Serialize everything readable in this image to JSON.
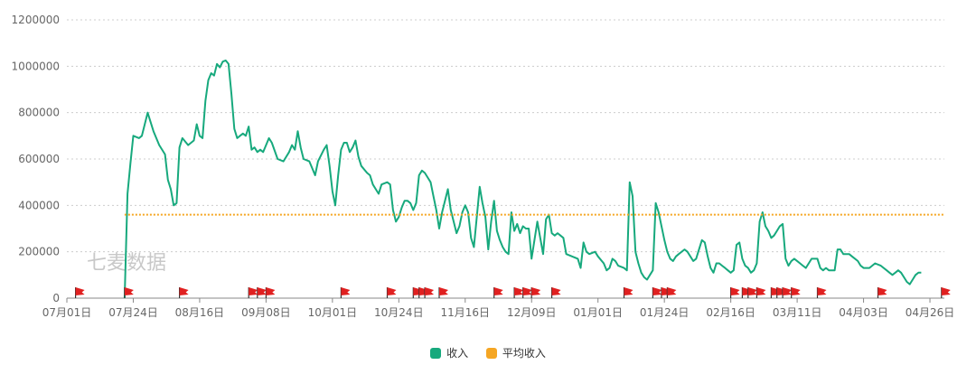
{
  "watermark": "七麦数据",
  "colors": {
    "income": "#17a97d",
    "average": "#f5a623",
    "flag": "#e02020",
    "axis": "#888888"
  },
  "legend": {
    "income": "收入",
    "average": "平均收入"
  },
  "chart_data": {
    "type": "line",
    "title": "",
    "ylim": [
      0,
      1200000
    ],
    "yticks": [
      0,
      200000,
      400000,
      600000,
      800000,
      1000000,
      1200000
    ],
    "ytick_labels": [
      "0",
      "200000",
      "400000",
      "600000",
      "800000",
      "1000000",
      "1200000"
    ],
    "xtick_labels": [
      "07月01日",
      "07月24日",
      "08月16日",
      "09月08日",
      "10月01日",
      "10月24日",
      "11月16日",
      "12月09日",
      "01月01日",
      "01月24日",
      "02月16日",
      "03月11日",
      "04月03日",
      "04月26日"
    ],
    "xtick_day_index": [
      0,
      23,
      46,
      69,
      92,
      115,
      138,
      161,
      184,
      207,
      230,
      253,
      276,
      299
    ],
    "day_count": 304,
    "grid": true,
    "legend_position": "bottom-center",
    "series": [
      {
        "name": "收入",
        "color": "#17a97d",
        "points": [
          [
            20,
            0
          ],
          [
            21,
            450000
          ],
          [
            22,
            580000
          ],
          [
            23,
            700000
          ],
          [
            25,
            690000
          ],
          [
            26,
            700000
          ],
          [
            28,
            800000
          ],
          [
            30,
            720000
          ],
          [
            32,
            660000
          ],
          [
            34,
            620000
          ],
          [
            35,
            510000
          ],
          [
            36,
            470000
          ],
          [
            37,
            400000
          ],
          [
            38,
            410000
          ],
          [
            39,
            650000
          ],
          [
            40,
            690000
          ],
          [
            42,
            660000
          ],
          [
            44,
            680000
          ],
          [
            45,
            750000
          ],
          [
            46,
            700000
          ],
          [
            47,
            690000
          ],
          [
            48,
            850000
          ],
          [
            49,
            940000
          ],
          [
            50,
            970000
          ],
          [
            51,
            960000
          ],
          [
            52,
            1010000
          ],
          [
            53,
            995000
          ],
          [
            54,
            1020000
          ],
          [
            55,
            1025000
          ],
          [
            56,
            1010000
          ],
          [
            57,
            880000
          ],
          [
            58,
            730000
          ],
          [
            59,
            690000
          ],
          [
            60,
            700000
          ],
          [
            61,
            710000
          ],
          [
            62,
            700000
          ],
          [
            63,
            740000
          ],
          [
            64,
            640000
          ],
          [
            65,
            650000
          ],
          [
            66,
            630000
          ],
          [
            67,
            640000
          ],
          [
            68,
            630000
          ],
          [
            69,
            660000
          ],
          [
            70,
            690000
          ],
          [
            71,
            670000
          ],
          [
            73,
            600000
          ],
          [
            75,
            590000
          ],
          [
            77,
            630000
          ],
          [
            78,
            660000
          ],
          [
            79,
            640000
          ],
          [
            80,
            720000
          ],
          [
            81,
            650000
          ],
          [
            82,
            600000
          ],
          [
            84,
            590000
          ],
          [
            85,
            560000
          ],
          [
            86,
            530000
          ],
          [
            87,
            590000
          ],
          [
            89,
            640000
          ],
          [
            90,
            660000
          ],
          [
            91,
            570000
          ],
          [
            92,
            460000
          ],
          [
            93,
            400000
          ],
          [
            94,
            530000
          ],
          [
            95,
            640000
          ],
          [
            96,
            670000
          ],
          [
            97,
            670000
          ],
          [
            98,
            630000
          ],
          [
            99,
            650000
          ],
          [
            100,
            680000
          ],
          [
            101,
            610000
          ],
          [
            102,
            570000
          ],
          [
            104,
            540000
          ],
          [
            105,
            530000
          ],
          [
            106,
            490000
          ],
          [
            107,
            470000
          ],
          [
            108,
            450000
          ],
          [
            109,
            490000
          ],
          [
            111,
            500000
          ],
          [
            112,
            490000
          ],
          [
            113,
            380000
          ],
          [
            114,
            330000
          ],
          [
            115,
            350000
          ],
          [
            116,
            390000
          ],
          [
            117,
            420000
          ],
          [
            118,
            420000
          ],
          [
            119,
            410000
          ],
          [
            120,
            380000
          ],
          [
            121,
            410000
          ],
          [
            122,
            530000
          ],
          [
            123,
            550000
          ],
          [
            124,
            540000
          ],
          [
            125,
            520000
          ],
          [
            126,
            500000
          ],
          [
            127,
            440000
          ],
          [
            128,
            380000
          ],
          [
            129,
            300000
          ],
          [
            130,
            370000
          ],
          [
            131,
            420000
          ],
          [
            132,
            470000
          ],
          [
            133,
            380000
          ],
          [
            134,
            330000
          ],
          [
            135,
            280000
          ],
          [
            136,
            310000
          ],
          [
            137,
            370000
          ],
          [
            138,
            400000
          ],
          [
            139,
            370000
          ],
          [
            140,
            260000
          ],
          [
            141,
            220000
          ],
          [
            142,
            350000
          ],
          [
            143,
            480000
          ],
          [
            144,
            410000
          ],
          [
            145,
            350000
          ],
          [
            146,
            210000
          ],
          [
            147,
            330000
          ],
          [
            148,
            420000
          ],
          [
            149,
            290000
          ],
          [
            150,
            250000
          ],
          [
            151,
            220000
          ],
          [
            152,
            200000
          ],
          [
            153,
            190000
          ],
          [
            154,
            370000
          ],
          [
            155,
            290000
          ],
          [
            156,
            320000
          ],
          [
            157,
            280000
          ],
          [
            158,
            310000
          ],
          [
            159,
            300000
          ],
          [
            160,
            300000
          ],
          [
            161,
            170000
          ],
          [
            162,
            250000
          ],
          [
            163,
            330000
          ],
          [
            164,
            260000
          ],
          [
            165,
            190000
          ],
          [
            166,
            340000
          ],
          [
            167,
            360000
          ],
          [
            168,
            280000
          ],
          [
            169,
            270000
          ],
          [
            170,
            280000
          ],
          [
            171,
            270000
          ],
          [
            172,
            260000
          ],
          [
            173,
            190000
          ],
          [
            175,
            180000
          ],
          [
            177,
            170000
          ],
          [
            178,
            130000
          ],
          [
            179,
            240000
          ],
          [
            180,
            200000
          ],
          [
            181,
            190000
          ],
          [
            183,
            200000
          ],
          [
            184,
            180000
          ],
          [
            186,
            150000
          ],
          [
            187,
            120000
          ],
          [
            188,
            130000
          ],
          [
            189,
            170000
          ],
          [
            190,
            160000
          ],
          [
            191,
            140000
          ],
          [
            193,
            130000
          ],
          [
            194,
            120000
          ],
          [
            195,
            500000
          ],
          [
            196,
            440000
          ],
          [
            197,
            200000
          ],
          [
            198,
            150000
          ],
          [
            199,
            110000
          ],
          [
            200,
            90000
          ],
          [
            201,
            80000
          ],
          [
            202,
            100000
          ],
          [
            203,
            120000
          ],
          [
            204,
            410000
          ],
          [
            205,
            370000
          ],
          [
            206,
            310000
          ],
          [
            207,
            250000
          ],
          [
            208,
            200000
          ],
          [
            209,
            170000
          ],
          [
            210,
            160000
          ],
          [
            211,
            180000
          ],
          [
            212,
            190000
          ],
          [
            214,
            210000
          ],
          [
            215,
            200000
          ],
          [
            216,
            180000
          ],
          [
            217,
            160000
          ],
          [
            218,
            170000
          ],
          [
            219,
            210000
          ],
          [
            220,
            250000
          ],
          [
            221,
            240000
          ],
          [
            222,
            180000
          ],
          [
            223,
            130000
          ],
          [
            224,
            110000
          ],
          [
            225,
            150000
          ],
          [
            226,
            150000
          ],
          [
            227,
            140000
          ],
          [
            228,
            130000
          ],
          [
            229,
            120000
          ],
          [
            230,
            110000
          ],
          [
            231,
            120000
          ],
          [
            232,
            230000
          ],
          [
            233,
            240000
          ],
          [
            234,
            170000
          ],
          [
            235,
            140000
          ],
          [
            236,
            130000
          ],
          [
            237,
            110000
          ],
          [
            238,
            120000
          ],
          [
            239,
            150000
          ],
          [
            240,
            330000
          ],
          [
            241,
            370000
          ],
          [
            242,
            310000
          ],
          [
            243,
            290000
          ],
          [
            244,
            260000
          ],
          [
            245,
            270000
          ],
          [
            246,
            290000
          ],
          [
            247,
            310000
          ],
          [
            248,
            320000
          ],
          [
            249,
            170000
          ],
          [
            250,
            140000
          ],
          [
            251,
            160000
          ],
          [
            252,
            170000
          ],
          [
            253,
            160000
          ],
          [
            254,
            150000
          ],
          [
            255,
            140000
          ],
          [
            256,
            130000
          ],
          [
            257,
            150000
          ],
          [
            258,
            170000
          ],
          [
            260,
            170000
          ],
          [
            261,
            130000
          ],
          [
            262,
            120000
          ],
          [
            263,
            130000
          ],
          [
            264,
            120000
          ],
          [
            266,
            120000
          ],
          [
            267,
            210000
          ],
          [
            268,
            210000
          ],
          [
            269,
            190000
          ],
          [
            271,
            190000
          ],
          [
            272,
            180000
          ],
          [
            274,
            160000
          ],
          [
            275,
            140000
          ],
          [
            276,
            130000
          ],
          [
            278,
            130000
          ],
          [
            279,
            140000
          ],
          [
            280,
            150000
          ],
          [
            282,
            140000
          ],
          [
            284,
            120000
          ],
          [
            285,
            110000
          ],
          [
            286,
            100000
          ],
          [
            287,
            110000
          ],
          [
            288,
            120000
          ],
          [
            289,
            110000
          ],
          [
            290,
            90000
          ],
          [
            291,
            70000
          ],
          [
            292,
            60000
          ],
          [
            293,
            80000
          ],
          [
            294,
            100000
          ],
          [
            295,
            110000
          ],
          [
            296,
            110000
          ]
        ]
      },
      {
        "name": "平均收入",
        "color": "#f5a623",
        "y_constant": 360000,
        "x_range": [
          20,
          304
        ]
      }
    ],
    "flag_day_index": [
      3,
      20,
      39,
      63,
      66,
      69,
      95,
      111,
      120,
      122,
      124,
      129,
      148,
      155,
      158,
      161,
      168,
      193,
      203,
      206,
      208,
      230,
      234,
      236,
      239,
      244,
      246,
      248,
      251,
      260,
      281,
      303
    ]
  }
}
